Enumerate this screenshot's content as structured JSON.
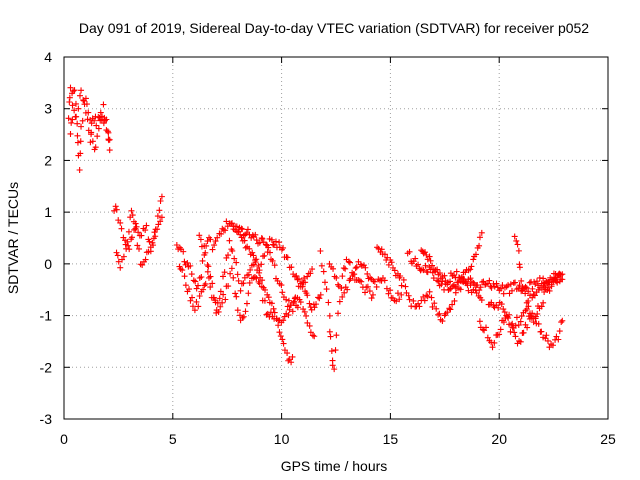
{
  "colors": {
    "series": "#ff0000",
    "axis": "#000000",
    "grid": "#a0a0a0",
    "background": "#ffffff"
  },
  "chart_data": {
    "type": "scatter",
    "title": "Day 091 of 2019, Sidereal Day-to-day VTEC variation (SDTVAR) for receiver p052",
    "xlabel": "GPS time / hours",
    "ylabel": "SDTVAR / TECUs",
    "xlim": [
      0,
      25
    ],
    "ylim": [
      -3,
      4
    ],
    "xticks": [
      0,
      5,
      10,
      15,
      20,
      25
    ],
    "yticks": [
      -3,
      -2,
      -1,
      0,
      1,
      2,
      3,
      4
    ],
    "grid": true,
    "marker": "plus",
    "series": [
      {
        "name": "SDTVAR",
        "color": "#ff0000",
        "tracks": [
          [
            [
              0.2,
              2.9
            ],
            [
              0.3,
              3.4
            ],
            [
              0.5,
              3.3
            ],
            [
              0.6,
              2.5
            ],
            [
              0.7,
              1.9
            ],
            [
              0.8,
              2.6
            ],
            [
              1.0,
              3.2
            ],
            [
              1.2,
              2.8
            ],
            [
              1.4,
              2.2
            ],
            [
              1.6,
              2.6
            ],
            [
              1.8,
              3.0
            ],
            [
              2.0,
              2.6
            ],
            [
              2.1,
              2.2
            ]
          ],
          [
            [
              0.3,
              2.6
            ],
            [
              0.4,
              3.0
            ],
            [
              0.6,
              2.8
            ],
            [
              0.8,
              3.4
            ],
            [
              1.0,
              2.9
            ],
            [
              1.2,
              2.4
            ],
            [
              1.3,
              2.9
            ],
            [
              1.5,
              2.7
            ],
            [
              1.7,
              2.9
            ],
            [
              1.9,
              2.7
            ],
            [
              2.1,
              2.4
            ]
          ],
          [
            [
              2.3,
              1.1
            ],
            [
              2.5,
              0.9
            ],
            [
              2.8,
              0.4
            ],
            [
              3.0,
              0.2
            ],
            [
              3.2,
              0.8
            ],
            [
              3.5,
              0.5
            ],
            [
              3.8,
              0.7
            ],
            [
              4.0,
              0.2
            ],
            [
              4.3,
              0.9
            ],
            [
              4.5,
              1.3
            ]
          ],
          [
            [
              2.4,
              0.2
            ],
            [
              2.6,
              -0.1
            ],
            [
              2.9,
              0.5
            ],
            [
              3.1,
              1.0
            ],
            [
              3.3,
              0.6
            ],
            [
              3.6,
              -0.1
            ],
            [
              3.9,
              0.3
            ],
            [
              4.2,
              0.6
            ],
            [
              4.5,
              0.9
            ]
          ],
          [
            [
              5.2,
              0.4
            ],
            [
              5.4,
              0.2
            ],
            [
              5.8,
              -0.1
            ],
            [
              6.1,
              -0.5
            ],
            [
              6.3,
              -0.2
            ],
            [
              6.6,
              0.5
            ],
            [
              6.9,
              0.3
            ],
            [
              7.2,
              0.6
            ],
            [
              7.6,
              0.8
            ],
            [
              8.0,
              0.7
            ],
            [
              8.4,
              0.6
            ],
            [
              8.8,
              0.5
            ],
            [
              9.2,
              0.4
            ],
            [
              9.6,
              0.4
            ],
            [
              10.0,
              0.3
            ],
            [
              10.3,
              0.1
            ],
            [
              10.6,
              -0.3
            ],
            [
              11.0,
              -0.4
            ],
            [
              11.4,
              -0.9
            ],
            [
              11.8,
              -0.6
            ]
          ],
          [
            [
              5.3,
              0.0
            ],
            [
              5.6,
              -0.4
            ],
            [
              6.0,
              -0.9
            ],
            [
              6.3,
              -0.6
            ],
            [
              6.6,
              -0.2
            ],
            [
              6.8,
              -0.6
            ],
            [
              7.1,
              -0.9
            ],
            [
              7.4,
              -0.6
            ],
            [
              7.7,
              -0.1
            ],
            [
              8.0,
              -0.9
            ],
            [
              8.2,
              -1.1
            ],
            [
              8.4,
              -0.7
            ],
            [
              8.7,
              -0.2
            ],
            [
              9.0,
              -0.4
            ],
            [
              9.3,
              -0.9
            ],
            [
              9.6,
              -1.0
            ],
            [
              9.9,
              -1.3
            ],
            [
              10.1,
              -1.6
            ],
            [
              10.3,
              -1.9
            ],
            [
              10.5,
              -1.8
            ]
          ],
          [
            [
              6.2,
              0.5
            ],
            [
              6.5,
              0.2
            ],
            [
              6.8,
              -0.4
            ],
            [
              7.0,
              -0.9
            ],
            [
              7.3,
              -0.3
            ],
            [
              7.6,
              0.4
            ],
            [
              7.9,
              0.0
            ],
            [
              8.1,
              -0.5
            ],
            [
              8.4,
              -0.3
            ],
            [
              8.7,
              0.1
            ],
            [
              9.0,
              -0.1
            ],
            [
              9.3,
              0.3
            ],
            [
              9.6,
              0.0
            ],
            [
              9.9,
              -0.4
            ],
            [
              10.2,
              -0.7
            ],
            [
              10.5,
              -0.9
            ],
            [
              10.8,
              -0.5
            ],
            [
              11.1,
              -0.3
            ],
            [
              11.4,
              -0.1
            ]
          ],
          [
            [
              7.8,
              0.7
            ],
            [
              8.1,
              0.5
            ],
            [
              8.5,
              0.3
            ],
            [
              8.8,
              0.0
            ],
            [
              9.1,
              -0.3
            ],
            [
              9.4,
              -0.7
            ],
            [
              9.7,
              -1.0
            ],
            [
              10.0,
              -1.2
            ],
            [
              10.3,
              -1.0
            ],
            [
              10.6,
              -0.7
            ],
            [
              10.9,
              -0.8
            ],
            [
              11.2,
              -1.1
            ],
            [
              11.5,
              -1.4
            ]
          ],
          [
            [
              11.8,
              0.2
            ],
            [
              12.0,
              -0.3
            ],
            [
              12.2,
              -1.0
            ],
            [
              12.3,
              -1.7
            ],
            [
              12.4,
              -2.1
            ],
            [
              12.6,
              -1.0
            ],
            [
              12.8,
              -0.3
            ],
            [
              13.0,
              0.1
            ],
            [
              13.3,
              -0.2
            ],
            [
              13.6,
              -0.4
            ],
            [
              13.9,
              -0.5
            ],
            [
              14.2,
              -0.6
            ]
          ],
          [
            [
              12.2,
              0.0
            ],
            [
              12.5,
              -0.3
            ],
            [
              12.8,
              -0.6
            ],
            [
              13.1,
              -0.4
            ],
            [
              13.4,
              -0.1
            ],
            [
              13.7,
              0.0
            ],
            [
              14.0,
              -0.2
            ],
            [
              14.3,
              -0.4
            ],
            [
              14.6,
              -0.3
            ],
            [
              14.9,
              -0.5
            ],
            [
              15.2,
              -0.7
            ],
            [
              15.5,
              -0.6
            ]
          ],
          [
            [
              14.4,
              0.3
            ],
            [
              14.8,
              0.1
            ],
            [
              15.2,
              -0.1
            ],
            [
              15.6,
              -0.4
            ],
            [
              15.9,
              -0.7
            ],
            [
              16.2,
              -0.9
            ],
            [
              16.5,
              -0.7
            ],
            [
              16.8,
              -0.6
            ],
            [
              17.1,
              -0.9
            ],
            [
              17.4,
              -1.1
            ],
            [
              17.7,
              -0.9
            ],
            [
              18.0,
              -0.6
            ],
            [
              18.3,
              -0.4
            ],
            [
              18.6,
              -0.3
            ],
            [
              18.9,
              -0.5
            ],
            [
              19.2,
              -0.7
            ]
          ],
          [
            [
              15.8,
              0.2
            ],
            [
              16.2,
              0.0
            ],
            [
              16.6,
              -0.1
            ],
            [
              17.0,
              -0.2
            ],
            [
              17.4,
              -0.4
            ],
            [
              17.8,
              -0.5
            ],
            [
              18.2,
              -0.3
            ],
            [
              18.5,
              -0.2
            ],
            [
              18.8,
              0.0
            ],
            [
              19.0,
              0.3
            ],
            [
              19.2,
              0.6
            ]
          ],
          [
            [
              16.4,
              0.2
            ],
            [
              16.8,
              0.1
            ],
            [
              17.2,
              -0.2
            ],
            [
              17.6,
              -0.3
            ],
            [
              18.0,
              -0.2
            ],
            [
              18.4,
              -0.4
            ],
            [
              18.8,
              -0.5
            ],
            [
              19.2,
              -0.4
            ],
            [
              19.6,
              -0.4
            ],
            [
              20.0,
              -0.5
            ],
            [
              20.4,
              -0.5
            ],
            [
              20.8,
              -0.4
            ],
            [
              21.2,
              -0.5
            ],
            [
              21.6,
              -0.4
            ],
            [
              22.0,
              -0.3
            ],
            [
              22.4,
              -0.3
            ],
            [
              22.8,
              -0.2
            ]
          ],
          [
            [
              19.1,
              -1.1
            ],
            [
              19.4,
              -1.3
            ],
            [
              19.7,
              -1.6
            ],
            [
              20.0,
              -1.3
            ],
            [
              20.3,
              -1.0
            ],
            [
              20.6,
              -1.3
            ],
            [
              20.9,
              -1.5
            ],
            [
              21.2,
              -1.2
            ],
            [
              21.5,
              -1.0
            ],
            [
              21.8,
              -1.2
            ],
            [
              22.1,
              -1.4
            ],
            [
              22.4,
              -1.6
            ],
            [
              22.7,
              -1.4
            ],
            [
              22.9,
              -1.1
            ]
          ],
          [
            [
              19.5,
              -0.7
            ],
            [
              19.8,
              -0.9
            ],
            [
              20.1,
              -0.8
            ],
            [
              20.4,
              -1.0
            ],
            [
              20.6,
              -1.2
            ],
            [
              20.9,
              -1.1
            ],
            [
              21.2,
              -0.9
            ],
            [
              21.5,
              -0.6
            ],
            [
              21.8,
              -0.5
            ],
            [
              22.1,
              -0.4
            ],
            [
              22.4,
              -0.4
            ],
            [
              22.7,
              -0.3
            ],
            [
              22.9,
              -0.3
            ]
          ],
          [
            [
              20.7,
              0.5
            ],
            [
              20.9,
              0.2
            ],
            [
              21.0,
              -0.3
            ],
            [
              21.2,
              -0.6
            ],
            [
              21.4,
              -0.9
            ],
            [
              21.6,
              -1.1
            ],
            [
              21.8,
              -0.9
            ],
            [
              22.0,
              -0.7
            ],
            [
              22.2,
              -0.5
            ],
            [
              22.4,
              -0.4
            ],
            [
              22.6,
              -0.3
            ],
            [
              22.9,
              -0.2
            ]
          ]
        ]
      }
    ]
  }
}
